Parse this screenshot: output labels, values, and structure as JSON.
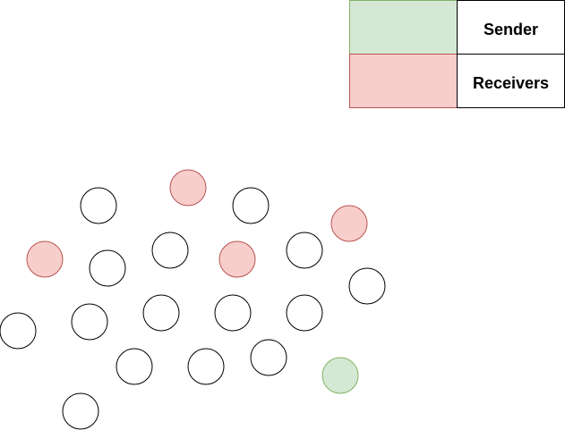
{
  "legend": {
    "sender_label": "Sender",
    "receivers_label": "Receivers"
  },
  "colors": {
    "sender_fill": "#d5e8d4",
    "sender_stroke": "#82b366",
    "receiver_fill": "#f8cecc",
    "receiver_stroke": "#b85450",
    "node_fill": "#ffffff",
    "node_stroke": "#000000"
  },
  "nodes": [
    {
      "role": "receiver"
    },
    {
      "role": "plain"
    },
    {
      "role": "plain"
    },
    {
      "role": "receiver"
    },
    {
      "role": "receiver"
    },
    {
      "role": "plain"
    },
    {
      "role": "plain"
    },
    {
      "role": "receiver"
    },
    {
      "role": "plain"
    },
    {
      "role": "plain"
    },
    {
      "role": "plain"
    },
    {
      "role": "plain"
    },
    {
      "role": "plain"
    },
    {
      "role": "plain"
    },
    {
      "role": "plain"
    },
    {
      "role": "plain"
    },
    {
      "role": "plain"
    },
    {
      "role": "plain"
    },
    {
      "role": "sender"
    },
    {
      "role": "plain"
    }
  ]
}
